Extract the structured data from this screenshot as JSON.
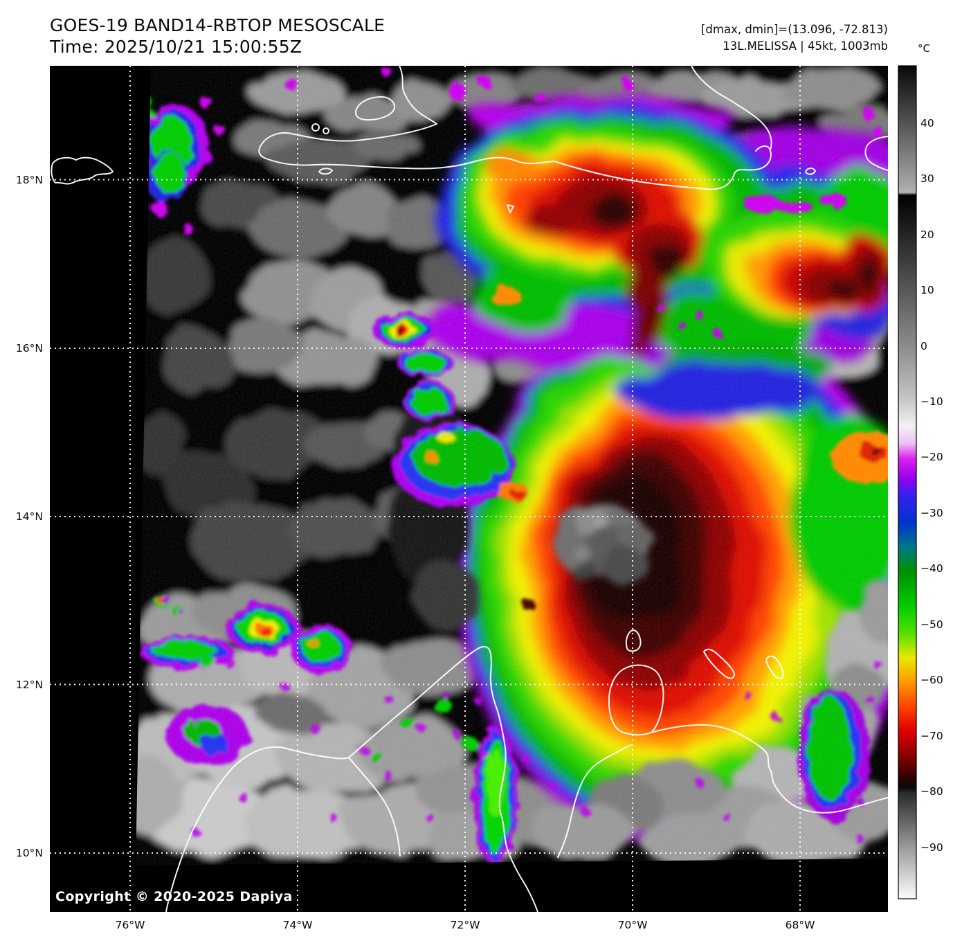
{
  "header": {
    "title": "GOES-19 BAND14-RBTOP MESOSCALE",
    "time": "Time: 2025/10/21 15:00:55Z",
    "dmax_dmin": "[dmax, dmin]=(13.096, -72.813)",
    "storm_info": "13L.MELISSA | 45kt, 1003mb"
  },
  "map": {
    "copyright": "Copyright © 2020-2025 Dapiya"
  },
  "axes": {
    "lat_ticks": [
      {
        "value": 18,
        "label": "18°N"
      },
      {
        "value": 16,
        "label": "16°N"
      },
      {
        "value": 14,
        "label": "14°N"
      },
      {
        "value": 12,
        "label": "12°N"
      },
      {
        "value": 10,
        "label": "10°N"
      }
    ],
    "lon_ticks": [
      {
        "value": 76,
        "label": "76°W"
      },
      {
        "value": 74,
        "label": "74°W"
      },
      {
        "value": 72,
        "label": "72°W"
      },
      {
        "value": 70,
        "label": "70°W"
      },
      {
        "value": 68,
        "label": "68°W"
      }
    ]
  },
  "colorbar": {
    "unit": "°C",
    "ticks": [
      {
        "value": 40,
        "label": "40"
      },
      {
        "value": 30,
        "label": "30"
      },
      {
        "value": 20,
        "label": "20"
      },
      {
        "value": 10,
        "label": "10"
      },
      {
        "value": 0,
        "label": "0"
      },
      {
        "value": -10,
        "label": "−10"
      },
      {
        "value": -20,
        "label": "−20"
      },
      {
        "value": -30,
        "label": "−30"
      },
      {
        "value": -40,
        "label": "−40"
      },
      {
        "value": -50,
        "label": "−50"
      },
      {
        "value": -60,
        "label": "−60"
      },
      {
        "value": -70,
        "label": "−70"
      },
      {
        "value": -80,
        "label": "−80"
      },
      {
        "value": -90,
        "label": "−90"
      }
    ]
  },
  "palette": {
    "warm_gray": "#8c8c8c",
    "white": "#f2f2f2",
    "magenta": "#dd22ea",
    "purple": "#9900ee",
    "blue": "#2233ee",
    "green": "#00c400",
    "yellow": "#e8e800",
    "orange": "#ff9900",
    "red": "#dd0800",
    "dark_red": "#8c0000",
    "coldest_black": "#1a0000"
  }
}
